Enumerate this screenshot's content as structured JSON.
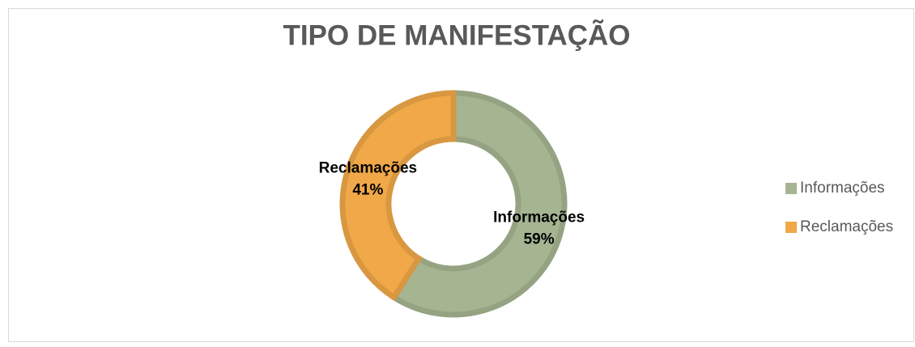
{
  "chart_data": {
    "type": "donut",
    "title": "TIPO DE MANIFESTAÇÃO",
    "categories": [
      "Informações",
      "Reclamações"
    ],
    "values": [
      59,
      41
    ],
    "value_labels": [
      "59%",
      "41%"
    ],
    "colors": [
      "#a5b592",
      "#f0a848"
    ],
    "legend": "right"
  }
}
